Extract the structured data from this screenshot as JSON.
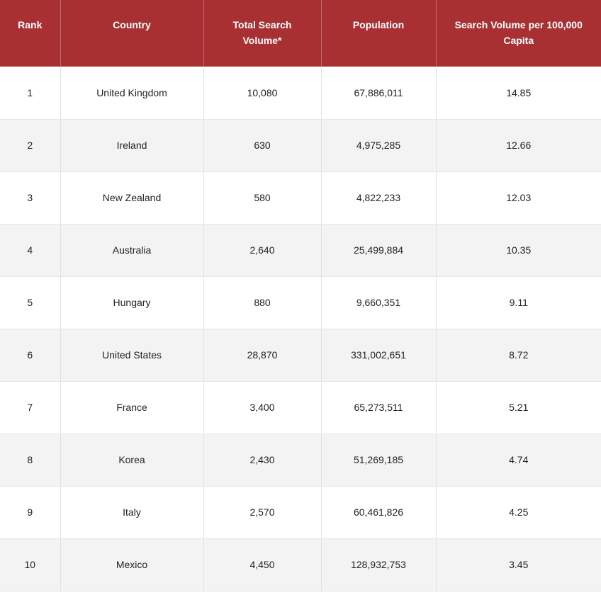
{
  "table": {
    "headers": [
      "Rank",
      "Country",
      "Total Search Volume*",
      "Population",
      "Search Volume per 100,000 Capita"
    ],
    "rows": [
      {
        "rank": "1",
        "country": "United Kingdom",
        "volume": "10,080",
        "population": "67,886,011",
        "per_capita": "14.85"
      },
      {
        "rank": "2",
        "country": "Ireland",
        "volume": "630",
        "population": "4,975,285",
        "per_capita": "12.66"
      },
      {
        "rank": "3",
        "country": "New Zealand",
        "volume": "580",
        "population": "4,822,233",
        "per_capita": "12.03"
      },
      {
        "rank": "4",
        "country": "Australia",
        "volume": "2,640",
        "population": "25,499,884",
        "per_capita": "10.35"
      },
      {
        "rank": "5",
        "country": "Hungary",
        "volume": "880",
        "population": "9,660,351",
        "per_capita": "9.11"
      },
      {
        "rank": "6",
        "country": "United States",
        "volume": "28,870",
        "population": "331,002,651",
        "per_capita": "8.72"
      },
      {
        "rank": "7",
        "country": "France",
        "volume": "3,400",
        "population": "65,273,511",
        "per_capita": "5.21"
      },
      {
        "rank": "8",
        "country": "Korea",
        "volume": "2,430",
        "population": "51,269,185",
        "per_capita": "4.74"
      },
      {
        "rank": "9",
        "country": "Italy",
        "volume": "2,570",
        "population": "60,461,826",
        "per_capita": "4.25"
      },
      {
        "rank": "10",
        "country": "Mexico",
        "volume": "4,450",
        "population": "128,932,753",
        "per_capita": "3.45"
      }
    ]
  },
  "colors": {
    "header_bg": "#a83033",
    "header_text": "#ffffff",
    "row_alt_bg": "#f3f3f3",
    "row_bg": "#ffffff",
    "cell_text": "#222222"
  }
}
